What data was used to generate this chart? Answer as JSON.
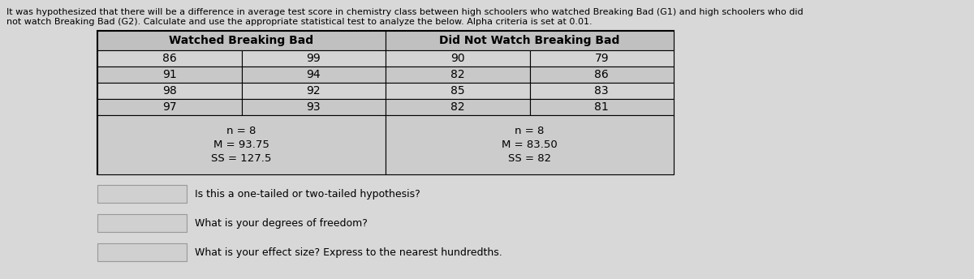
{
  "header_line1": "It was hypothesized that there will be a difference in average test score in chemistry class between high schoolers who watched Breaking Bad (G1) and high schoolers who did",
  "header_line2": "not watch Breaking Bad (G2). Calculate and use the appropriate statistical test to analyze the below. Alpha criteria is set at 0.01.",
  "g1_header": "Watched Breaking Bad",
  "g2_header": "Did Not Watch Breaking Bad",
  "g1_col1": [
    86,
    91,
    98,
    97
  ],
  "g1_col2": [
    99,
    94,
    92,
    93
  ],
  "g2_col1": [
    90,
    82,
    85,
    82
  ],
  "g2_col2": [
    79,
    86,
    83,
    81
  ],
  "g1_stats": [
    "n = 8",
    "M = 93.75",
    "SS = 127.5"
  ],
  "g2_stats": [
    "n = 8",
    "M = 83.50",
    "SS = 82"
  ],
  "questions": [
    "Is this a one-tailed or two-tailed hypothesis?",
    "What is your degrees of freedom?",
    "What is your effect size? Express to the nearest hundredths."
  ],
  "bg_color": "#d8d8d8",
  "cell_color_light": "#d4d4d4",
  "cell_color_dark": "#c8c8c8",
  "header_color": "#c0c0c0",
  "stats_color": "#cccccc",
  "answer_box_color": "#d0d0d0"
}
